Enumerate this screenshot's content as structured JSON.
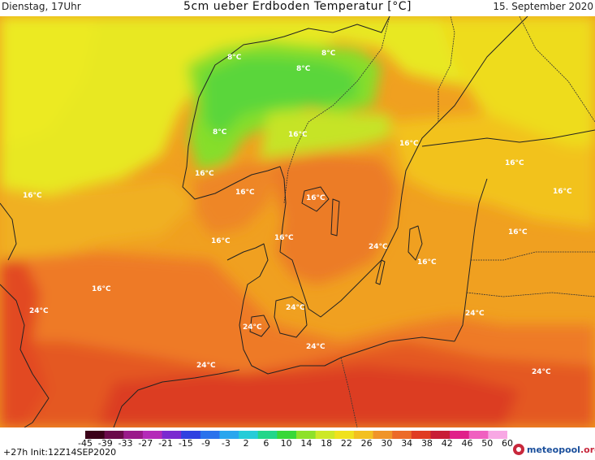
{
  "header": {
    "left": "Dienstag, 17Uhr",
    "title": "5cm ueber Erdboden Temperatur [°C]",
    "right": "15. September 2020"
  },
  "map": {
    "labels": [
      {
        "text": "8°C"
      },
      {
        "text": "8°C"
      },
      {
        "text": "8°C"
      },
      {
        "text": "8°C"
      },
      {
        "text": "16°C"
      },
      {
        "text": "16°C"
      },
      {
        "text": "16°C"
      },
      {
        "text": "16°C"
      },
      {
        "text": "16°C"
      },
      {
        "text": "16°C"
      },
      {
        "text": "16°C"
      },
      {
        "text": "16°C"
      },
      {
        "text": "16°C"
      },
      {
        "text": "16°C"
      },
      {
        "text": "16°C"
      },
      {
        "text": "16°C"
      },
      {
        "text": "16°C"
      },
      {
        "text": "24°C"
      },
      {
        "text": "24°C"
      },
      {
        "text": "24°C"
      },
      {
        "text": "24°C"
      },
      {
        "text": "24°C"
      },
      {
        "text": "24°C"
      },
      {
        "text": "24°C"
      }
    ]
  },
  "legend": {
    "ticks": [
      "-45",
      "-39",
      "-33",
      "-27",
      "-21",
      "-15",
      "-9",
      "-3",
      "2",
      "6",
      "10",
      "14",
      "18",
      "22",
      "26",
      "30",
      "34",
      "38",
      "42",
      "46",
      "50",
      "60"
    ],
    "colors": [
      "#3a0018",
      "#6a0a4a",
      "#9a1a8a",
      "#b42ab8",
      "#7a2ad0",
      "#3040e0",
      "#2a72ec",
      "#2aa6ee",
      "#26ccd8",
      "#22d68a",
      "#38d838",
      "#8ee12a",
      "#cde828",
      "#f0e21e",
      "#f3c020",
      "#f09428",
      "#ec6a28",
      "#e03c22",
      "#c81e36",
      "#e0208a",
      "#f060c0",
      "#f8a8e4"
    ]
  },
  "footer": {
    "left": "+27h Init:12Z14SEP2020",
    "logo_main": "meteopool",
    "logo_suffix": ".org"
  }
}
